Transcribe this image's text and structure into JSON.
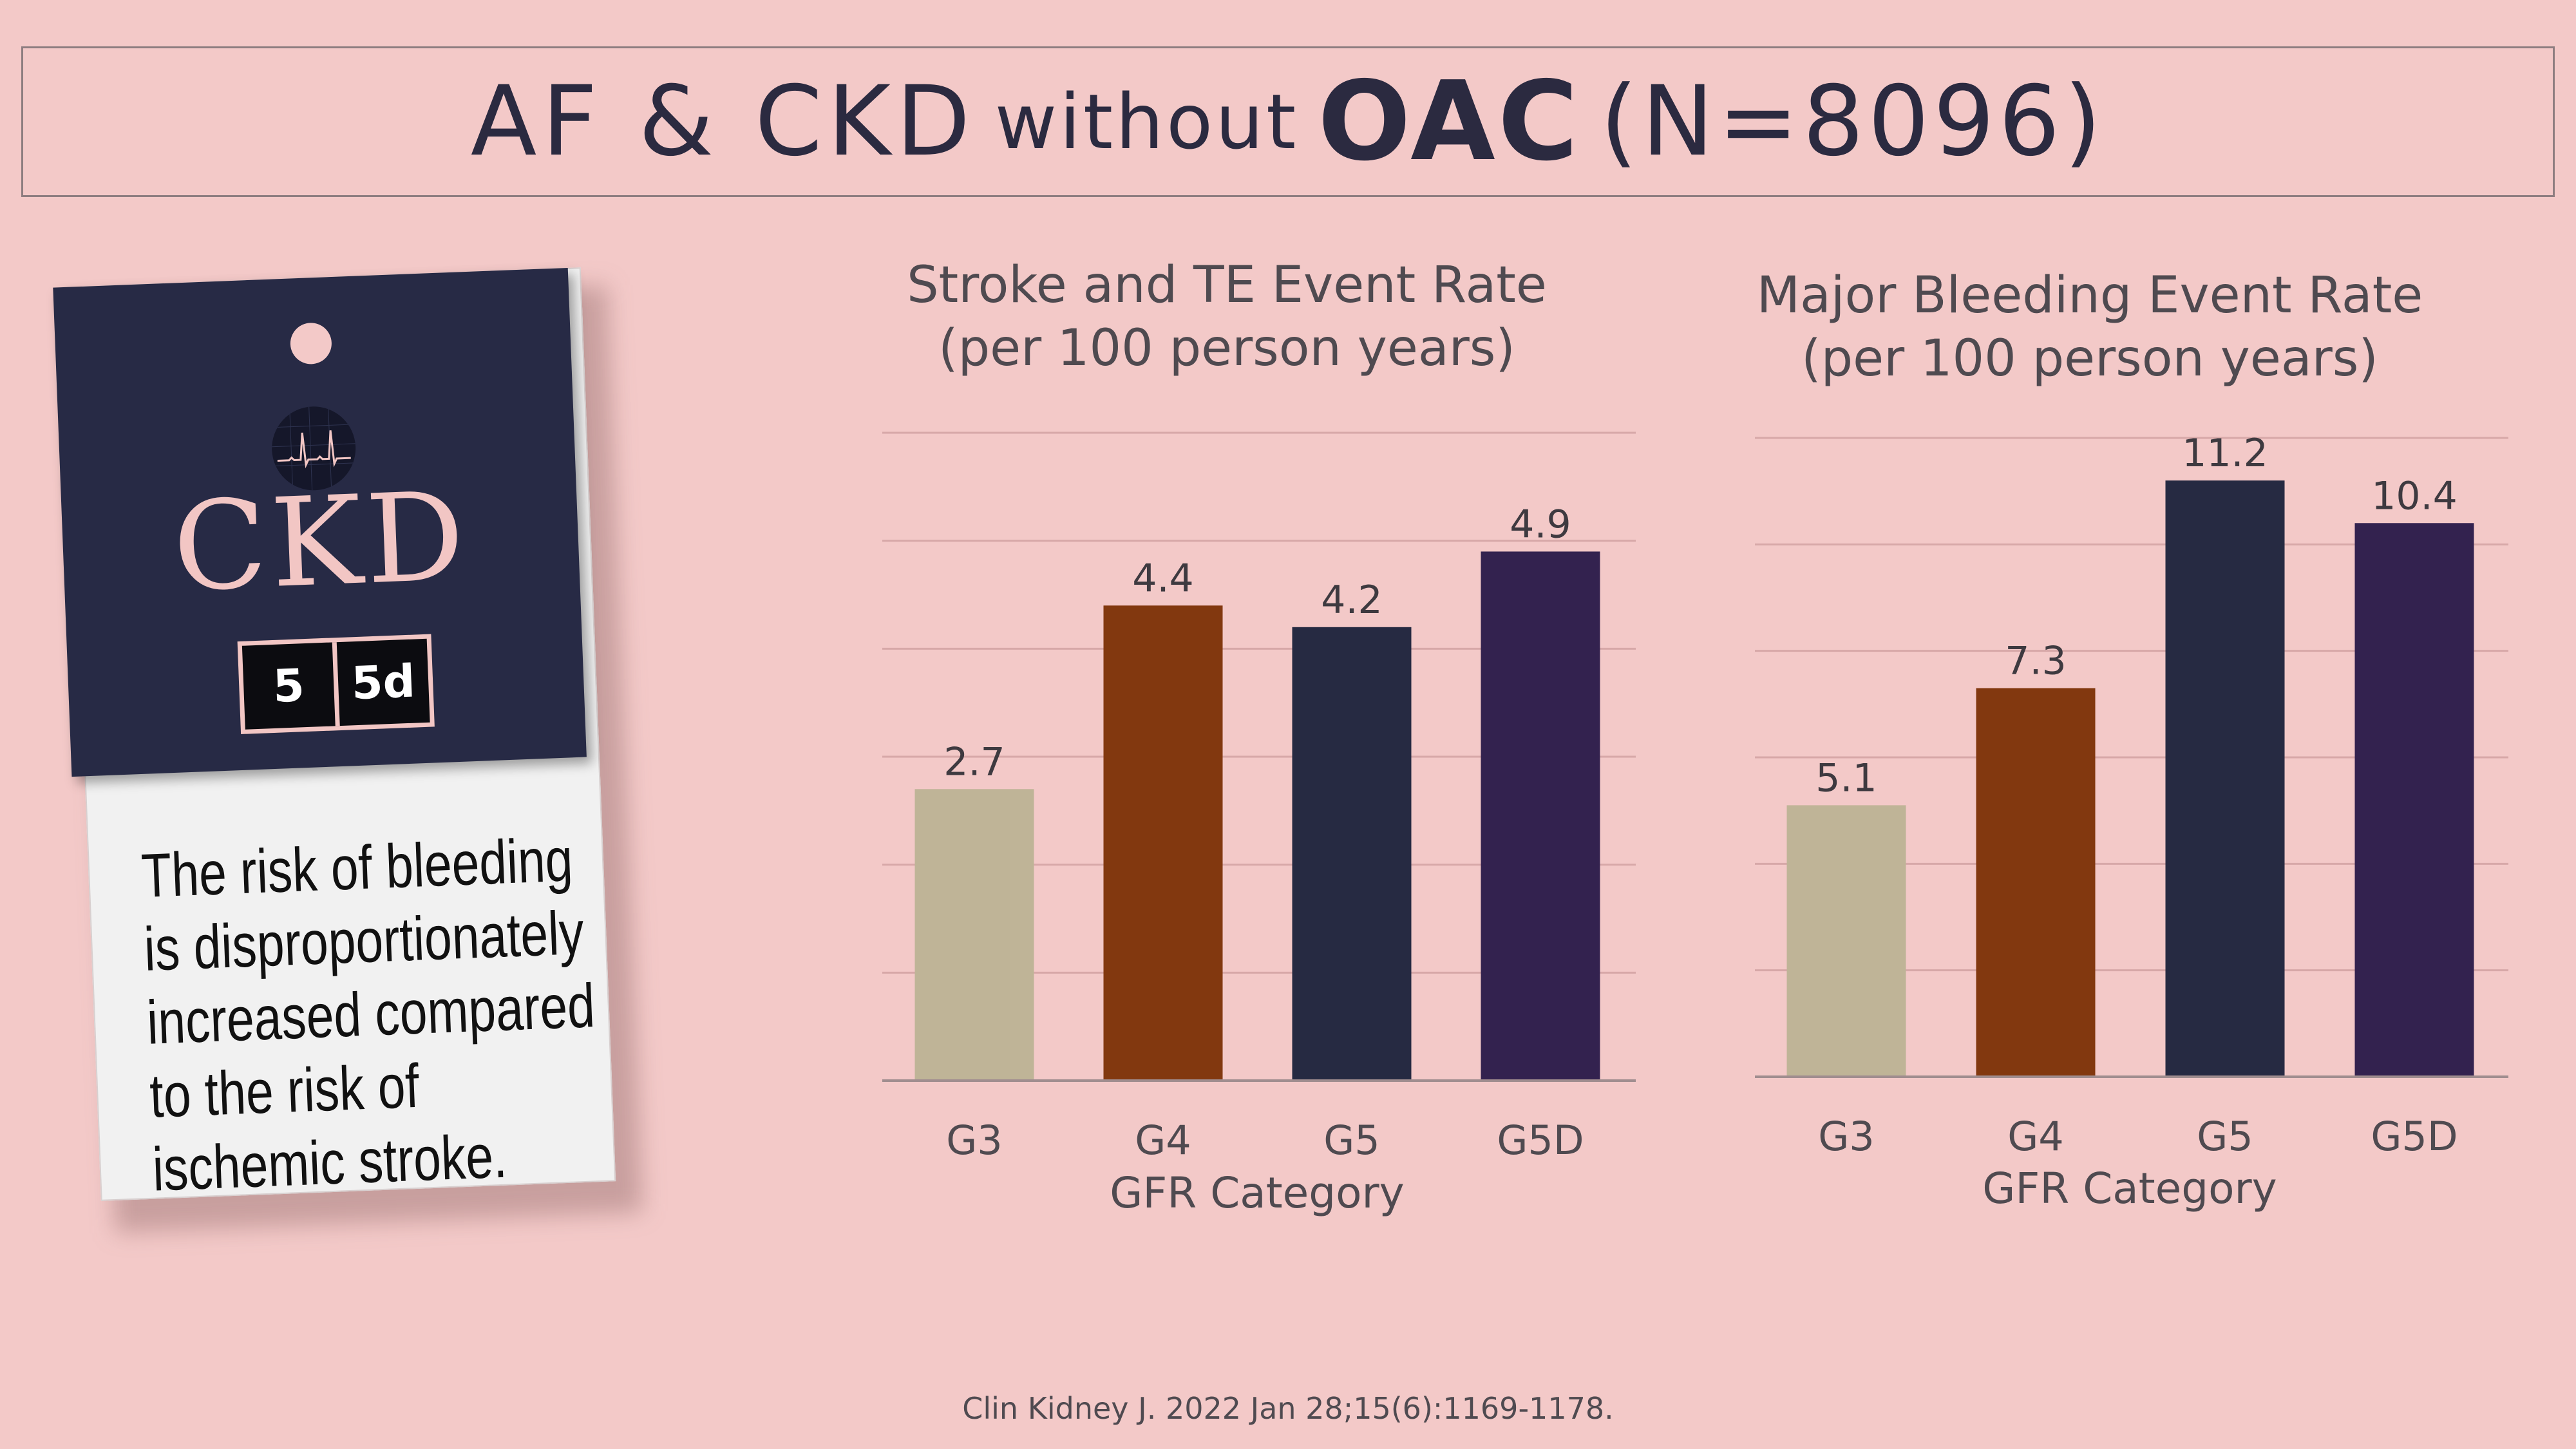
{
  "title": {
    "part1": "AF & CKD",
    "part2": "without",
    "part3": "OAC",
    "part4": "(N=8096)"
  },
  "tag": {
    "logo_text": "CKD",
    "stages": [
      "5",
      "5d"
    ],
    "note": "The risk of bleeding is disproportionately increased compared to the risk of ischemic stroke."
  },
  "citation": "Clin Kidney J. 2022 Jan 28;15(6):1169-1178.",
  "chart_data": [
    {
      "type": "bar",
      "title": "Stroke and TE Event Rate",
      "subtitle": "(per 100 person years)",
      "xlabel": "GFR Category",
      "ylabel": "",
      "categories": [
        "G3",
        "G4",
        "G5",
        "G5D"
      ],
      "values": [
        2.7,
        4.4,
        4.2,
        4.9
      ],
      "colors": [
        "#bfb497",
        "#82380f",
        "#262a42",
        "#33224f"
      ],
      "ylim": [
        0,
        6
      ],
      "grid": true
    },
    {
      "type": "bar",
      "title": "Major Bleeding Event Rate",
      "subtitle": "(per 100 person years)",
      "xlabel": "GFR Category",
      "ylabel": "",
      "categories": [
        "G3",
        "G4",
        "G5",
        "G5D"
      ],
      "values": [
        5.1,
        7.3,
        11.2,
        10.4
      ],
      "colors": [
        "#bfb497",
        "#82380f",
        "#262a42",
        "#33224f"
      ],
      "ylim": [
        0,
        12
      ],
      "grid": true
    }
  ]
}
